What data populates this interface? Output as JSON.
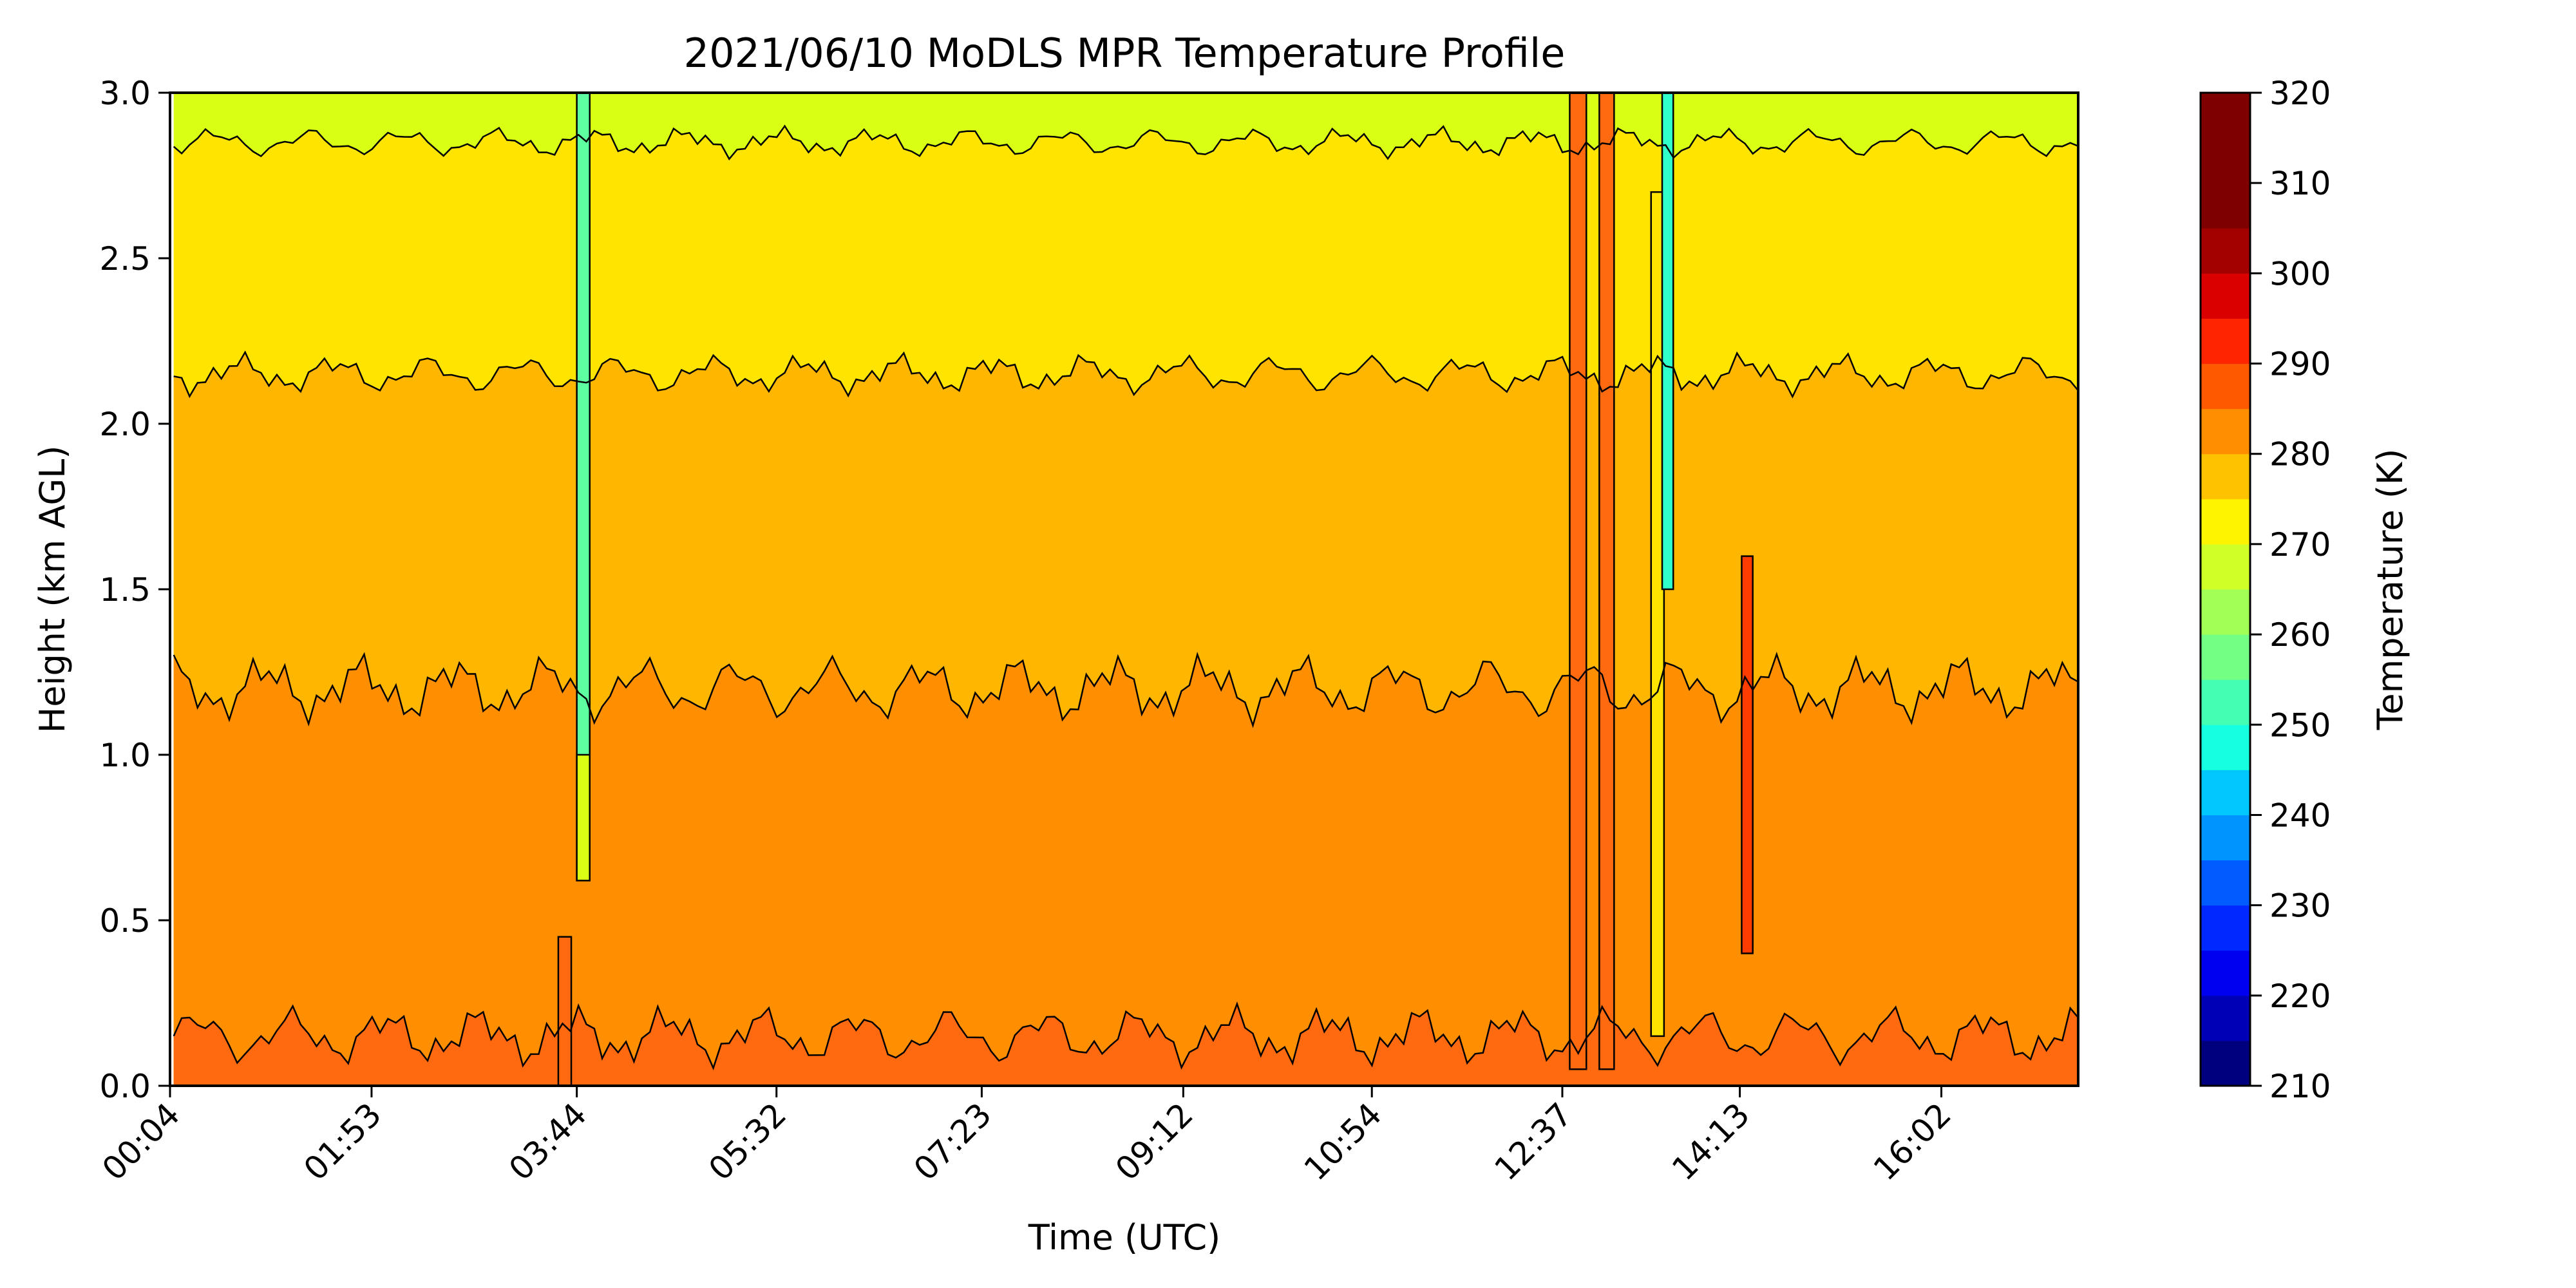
{
  "chart_data": {
    "type": "heatmap",
    "subtype": "filled-contour",
    "title": "2021/06/10 MoDLS MPR Temperature Profile",
    "xlabel": "Time (UTC)",
    "ylabel": "Height (km AGL)",
    "x_ticks": [
      "00:04",
      "01:53",
      "03:44",
      "05:32",
      "07:23",
      "09:12",
      "10:54",
      "12:37",
      "14:13",
      "16:02"
    ],
    "x_tick_minutes": [
      4,
      113,
      224,
      332,
      443,
      552,
      654,
      757,
      853,
      962
    ],
    "xlim_minutes": [
      4,
      1036
    ],
    "ylim": [
      0,
      3.0
    ],
    "y_ticks": [
      "0.0",
      "0.5",
      "1.0",
      "1.5",
      "2.0",
      "2.5",
      "3.0"
    ],
    "y_tick_values": [
      0,
      0.5,
      1.0,
      1.5,
      2.0,
      2.5,
      3.0
    ],
    "colorbar": {
      "label": "Temperature (K)",
      "range": [
        210,
        320
      ],
      "ticks": [
        "210",
        "220",
        "230",
        "240",
        "250",
        "260",
        "270",
        "280",
        "290",
        "300",
        "310",
        "320"
      ],
      "tick_values": [
        210,
        220,
        230,
        240,
        250,
        260,
        270,
        280,
        290,
        300,
        310,
        320
      ],
      "levels": [
        210,
        215,
        220,
        225,
        230,
        235,
        240,
        245,
        250,
        255,
        260,
        265,
        270,
        275,
        280,
        285,
        290,
        295,
        300,
        305,
        310,
        315,
        320
      ],
      "colormap": "jet",
      "colors": [
        "#00007f",
        "#0000b6",
        "#0000f1",
        "#0028ff",
        "#005cff",
        "#0094ff",
        "#00c8ff",
        "#16ffe1",
        "#44ffb3",
        "#73ff84",
        "#a1ff55",
        "#d0ff27",
        "#fff400",
        "#ffc200",
        "#ff8e00",
        "#ff5900",
        "#ff2500",
        "#da0000",
        "#a30000",
        "#7f0000",
        "#7f0000",
        "#7f0000"
      ]
    },
    "contour_boundaries_km": [
      {
        "between_K": [
          295,
          300
        ],
        "mean_height_km": 0.15
      },
      {
        "between_K": [
          290,
          295
        ],
        "mean_height_km": 1.2
      },
      {
        "between_K": [
          285,
          290
        ],
        "mean_height_km": 2.15
      },
      {
        "between_K": [
          280,
          285
        ],
        "mean_height_km": 2.85
      }
    ],
    "bands": [
      {
        "from_km": 0.0,
        "to_km": 0.15,
        "temperature_K": 297.5,
        "color": "#ff6a10"
      },
      {
        "from_km": 0.15,
        "to_km": 1.2,
        "temperature_K": 292.5,
        "color": "#ff8e00"
      },
      {
        "from_km": 1.2,
        "to_km": 2.15,
        "temperature_K": 287.5,
        "color": "#ffb600"
      },
      {
        "from_km": 2.15,
        "to_km": 2.85,
        "temperature_K": 282.5,
        "color": "#ffe400"
      },
      {
        "from_km": 2.85,
        "to_km": 3.0,
        "temperature_K": 277.5,
        "color": "#d8ff14"
      }
    ],
    "anomalies": [
      {
        "start_min": 214,
        "end_min": 221,
        "from_km": 0.0,
        "to_km": 0.45,
        "temperature_K": 297.5,
        "color": "#ff6a10"
      },
      {
        "start_min": 224,
        "end_min": 231,
        "from_km": 0.62,
        "to_km": 3.0,
        "temperature_K": 262.5,
        "color": "#5dffa0"
      },
      {
        "start_min": 224,
        "end_min": 231,
        "from_km": 0.62,
        "to_km": 1.0,
        "temperature_K": 277.5,
        "color": "#d8ff14"
      },
      {
        "start_min": 761,
        "end_min": 770,
        "from_km": 0.05,
        "to_km": 3.0,
        "temperature_K": 297.5,
        "color": "#ff6a10"
      },
      {
        "start_min": 777,
        "end_min": 785,
        "from_km": 0.05,
        "to_km": 3.0,
        "temperature_K": 297.5,
        "color": "#ff6a10"
      },
      {
        "start_min": 805,
        "end_min": 812,
        "from_km": 0.15,
        "to_km": 2.7,
        "temperature_K": 282.5,
        "color": "#ffe400"
      },
      {
        "start_min": 811,
        "end_min": 817,
        "from_km": 1.5,
        "to_km": 3.0,
        "temperature_K": 257.5,
        "color": "#30ffcc"
      },
      {
        "start_min": 854,
        "end_min": 860,
        "from_km": 0.4,
        "to_km": 1.6,
        "temperature_K": 302.5,
        "color": "#ff3c00"
      }
    ]
  }
}
